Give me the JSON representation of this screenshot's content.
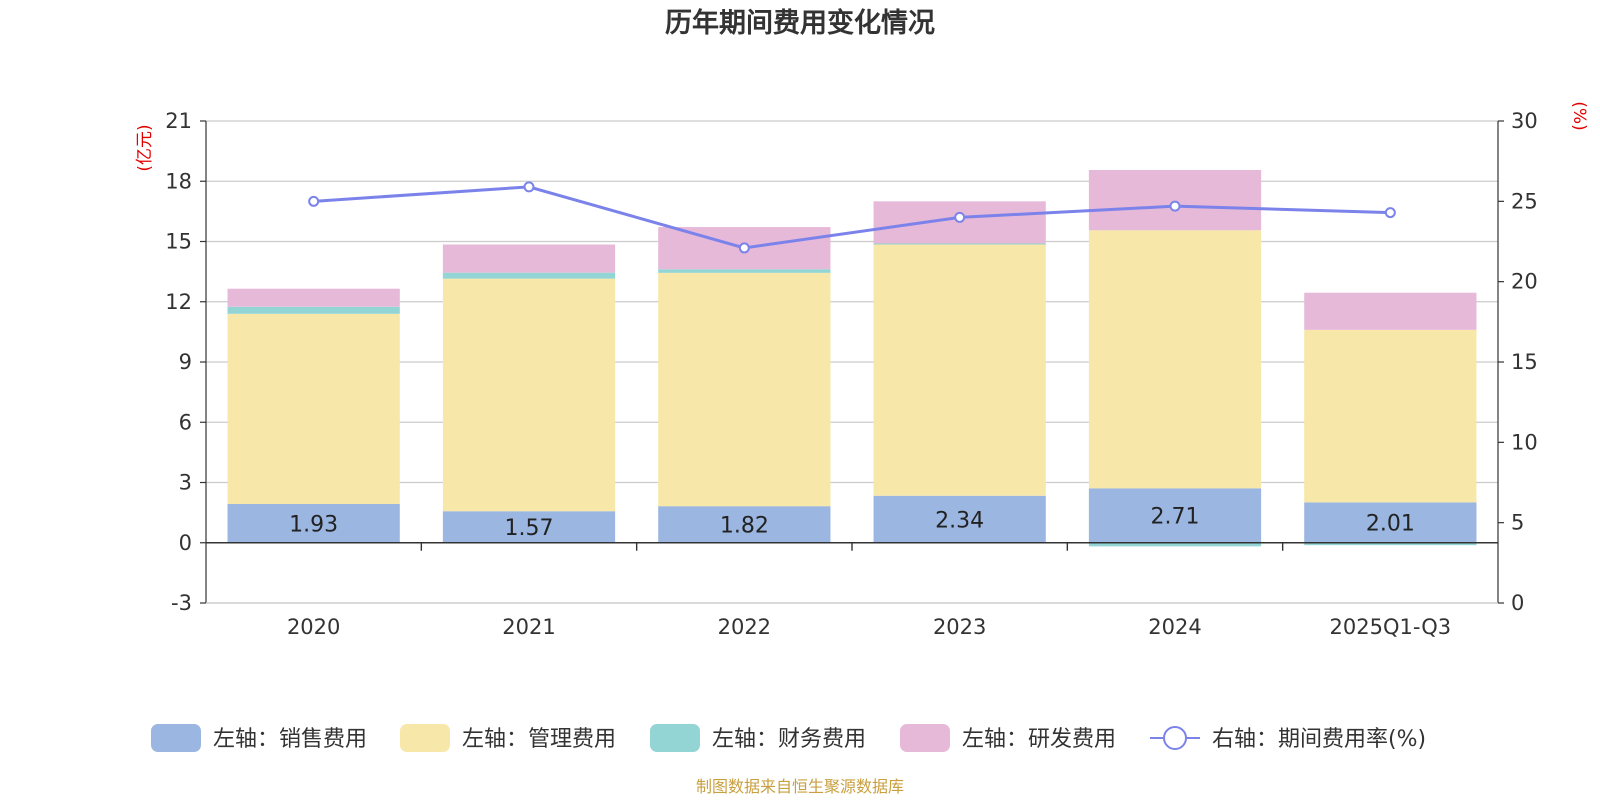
{
  "chart_data": {
    "type": "bar",
    "title": "历年期间费用变化情况",
    "categories": [
      "2020",
      "2021",
      "2022",
      "2023",
      "2024",
      "2025Q1-Q3"
    ],
    "left_axis": {
      "unit": "(亿元)",
      "ylim": [
        -3,
        21
      ],
      "ticks": [
        -3,
        0,
        3,
        6,
        9,
        12,
        15,
        18,
        21
      ]
    },
    "right_axis": {
      "unit": "(%)",
      "ylim": [
        0,
        30
      ],
      "ticks": [
        0,
        5,
        10,
        15,
        20,
        25,
        30
      ]
    },
    "grid": true,
    "series": [
      {
        "name": "左轴：销售费用",
        "axis": "left",
        "kind": "bar",
        "color": "#9bb7e1",
        "values": [
          1.93,
          1.57,
          1.82,
          2.34,
          2.71,
          2.01
        ],
        "labels": [
          "1.93",
          "1.57",
          "1.82",
          "2.34",
          "2.71",
          "2.01"
        ]
      },
      {
        "name": "左轴：管理费用",
        "axis": "left",
        "kind": "bar",
        "color": "#f7e7a8",
        "values": [
          9.47,
          11.58,
          11.62,
          12.51,
          12.85,
          8.59
        ]
      },
      {
        "name": "左轴：财务费用",
        "axis": "left",
        "kind": "bar",
        "color": "#93d4d4",
        "values": [
          0.35,
          0.3,
          0.18,
          0.05,
          -0.18,
          -0.12
        ]
      },
      {
        "name": "左轴：研发费用",
        "axis": "left",
        "kind": "bar",
        "color": "#e7b9d9",
        "values": [
          0.9,
          1.4,
          2.1,
          2.1,
          3.0,
          1.85
        ]
      },
      {
        "name": "右轴：期间费用率(%)",
        "axis": "right",
        "kind": "line",
        "color": "#7b83eb",
        "values": [
          25.0,
          25.9,
          22.1,
          24.0,
          24.7,
          24.3
        ]
      }
    ],
    "legend_position": "bottom",
    "source": "制图数据来自恒生聚源数据库"
  }
}
